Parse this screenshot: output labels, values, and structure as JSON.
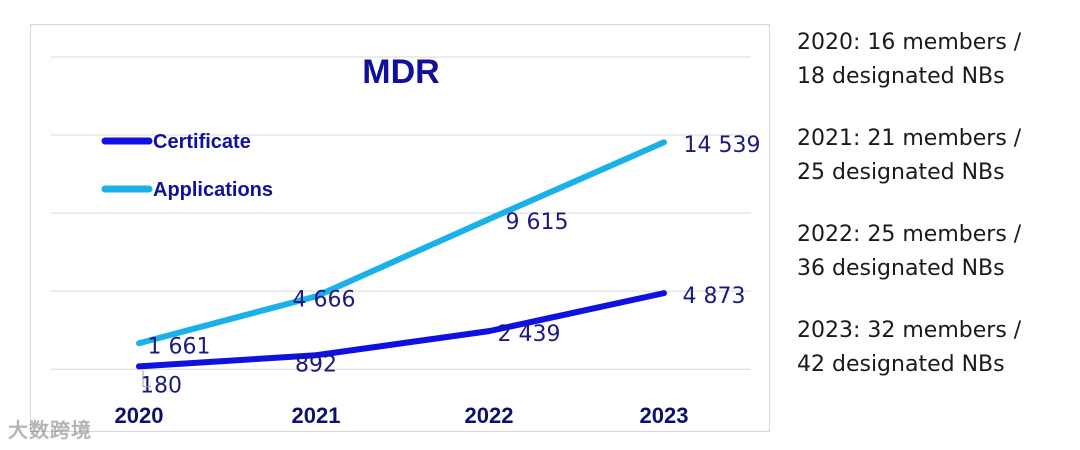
{
  "chart_data": {
    "type": "line",
    "title": "MDR",
    "categories": [
      "2020",
      "2021",
      "2022",
      "2023"
    ],
    "series": [
      {
        "name": "Certificate",
        "values": [
          180,
          892,
          2439,
          4873
        ],
        "labels": [
          "180",
          "892",
          "2 439",
          "4 873"
        ],
        "color": "#1010e0"
      },
      {
        "name": "Applications",
        "values": [
          1661,
          4666,
          9615,
          14539
        ],
        "labels": [
          "1 661",
          "4 666",
          "9 615",
          "14 539"
        ],
        "color": "#1ab0e8"
      }
    ],
    "ylim": [
      -500,
      20000
    ],
    "grid": true,
    "legend": "top-left",
    "label_color": "#1a1a80"
  },
  "notes": [
    {
      "line1": "2020: 16 members /",
      "line2": "18 designated NBs"
    },
    {
      "line1": "2021: 21 members /",
      "line2": "25 designated NBs"
    },
    {
      "line1": "2022: 25 members /",
      "line2": "36 designated NBs"
    },
    {
      "line1": "2023: 32 members /",
      "line2": "42 designated NBs"
    }
  ],
  "watermark": "大数跨境"
}
